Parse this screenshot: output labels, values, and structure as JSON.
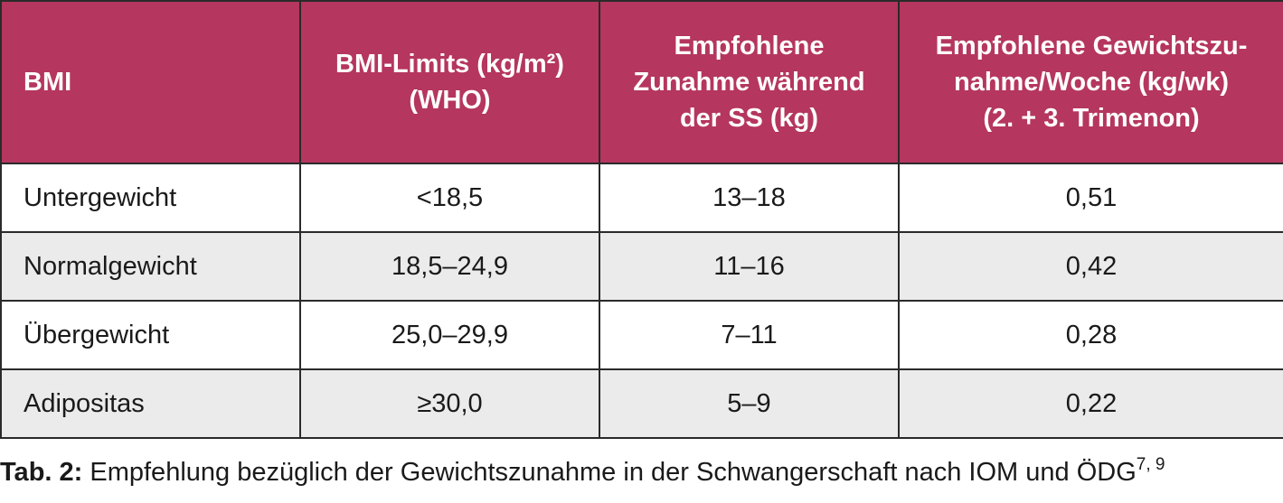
{
  "table": {
    "header": [
      [
        "BMI"
      ],
      [
        "BMI-Limits (kg/m²)",
        "(WHO)"
      ],
      [
        "Empfohlene",
        "Zunahme während",
        "der SS (kg)"
      ],
      [
        "Empfohlene Gewichtszu-",
        "nahme/Woche (kg/wk)",
        "(2. + 3. Trimenon)"
      ]
    ],
    "rows": [
      [
        "Untergewicht",
        "<18,5",
        "13–18",
        "0,51"
      ],
      [
        "Normalgewicht",
        "18,5–24,9",
        "11–16",
        "0,42"
      ],
      [
        "Übergewicht",
        "25,0–29,9",
        "7–11",
        "0,28"
      ],
      [
        "Adipositas",
        "≥30,0",
        "5–9",
        "0,22"
      ]
    ]
  },
  "caption": {
    "label": "Tab. 2:",
    "text": "Empfehlung bezüglich der Gewichtszunahme in der Schwangerschaft nach IOM und ÖDG",
    "refs": "7, 9"
  }
}
